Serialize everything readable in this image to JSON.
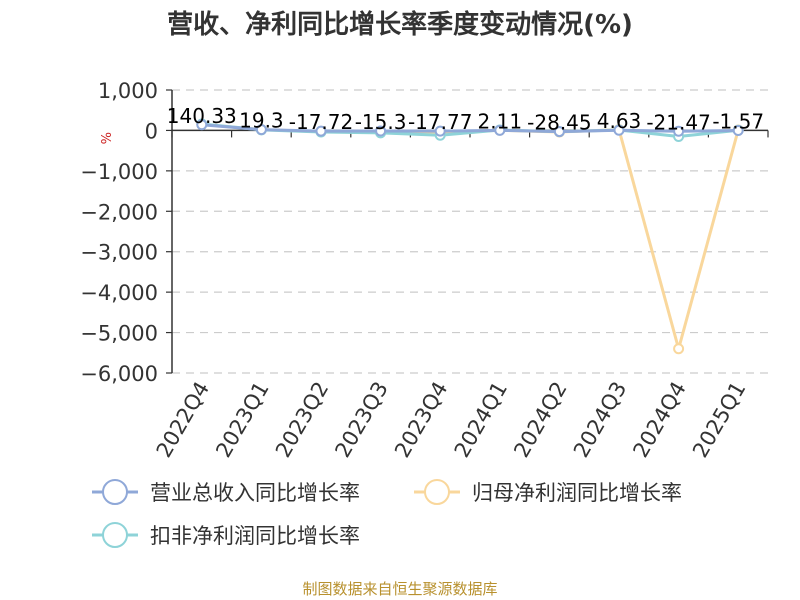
{
  "title": "营收、净利同比增长率季度变动情况(%)",
  "unit_label": "%",
  "footer": "制图数据来自恒生聚源数据库",
  "chart_data": {
    "type": "line",
    "title": "营收、净利同比增长率季度变动情况(%)",
    "ylim": [
      -6000,
      1000
    ],
    "yticks": [
      1000,
      0,
      -1000,
      -2000,
      -3000,
      -4000,
      -5000,
      -6000
    ],
    "ytick_labels": [
      "1,000",
      "0",
      "−1,000",
      "−2,000",
      "−3,000",
      "−4,000",
      "−5,000",
      "−6,000"
    ],
    "grid": true,
    "legend_position": "bottom",
    "categories": [
      "2022Q4",
      "2023Q1",
      "2023Q2",
      "2023Q3",
      "2023Q4",
      "2024Q1",
      "2024Q2",
      "2024Q3",
      "2024Q4",
      "2025Q1"
    ],
    "series": [
      {
        "name": "营业总收入同比增长率",
        "color": "#8fa8d8",
        "values": [
          140.33,
          19.3,
          -17.72,
          -15.3,
          -17.77,
          2.11,
          -28.45,
          4.63,
          -21.47,
          -1.57
        ],
        "labels": [
          "140.33",
          "19.3",
          "-17.72",
          "-15.3",
          "-17.77",
          "2.11",
          "-28.45",
          "4.63",
          "-21.47",
          "-1.57"
        ]
      },
      {
        "name": "归母净利润同比增长率",
        "color": "#f9d79c",
        "values": [
          150,
          20,
          -30,
          -50,
          -60,
          5,
          -40,
          20,
          -5400,
          10
        ],
        "labels": []
      },
      {
        "name": "扣非净利润同比增长率",
        "color": "#8ed3d8",
        "values": [
          160,
          15,
          -40,
          -60,
          -120,
          10,
          -30,
          10,
          -150,
          5
        ],
        "labels": []
      }
    ]
  }
}
